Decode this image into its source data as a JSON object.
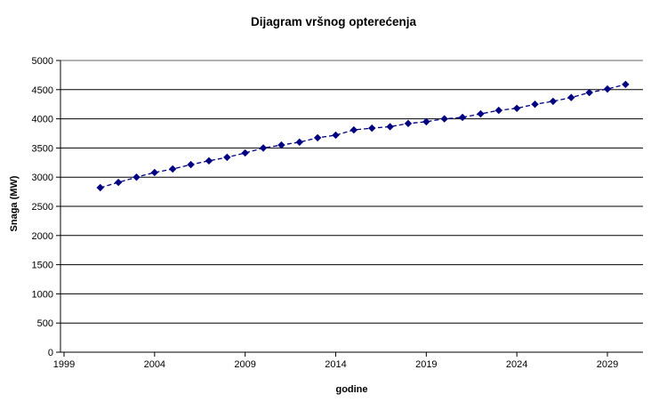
{
  "chart_data": {
    "type": "line",
    "title": "Dijagram vršnog opterećenja",
    "xlabel": "godine",
    "ylabel": "Snaga (MW)",
    "x": [
      2001,
      2002,
      2003,
      2004,
      2005,
      2006,
      2007,
      2008,
      2009,
      2010,
      2011,
      2012,
      2013,
      2014,
      2015,
      2016,
      2017,
      2018,
      2019,
      2020,
      2021,
      2022,
      2023,
      2024,
      2025,
      2026,
      2027,
      2028,
      2029,
      2030
    ],
    "values": [
      2820,
      2910,
      3000,
      3080,
      3140,
      3215,
      3280,
      3340,
      3415,
      3500,
      3550,
      3600,
      3675,
      3720,
      3810,
      3840,
      3865,
      3920,
      3950,
      4000,
      4025,
      4085,
      4145,
      4180,
      4250,
      4300,
      4365,
      4450,
      4510,
      4590
    ],
    "x_tick_labels": [
      "1999",
      "2004",
      "2009",
      "2014",
      "2019",
      "2024",
      "2029"
    ],
    "x_tick_years": [
      1999,
      2004,
      2009,
      2014,
      2019,
      2024,
      2029
    ],
    "y_tick_labels": [
      "0",
      "500",
      "1000",
      "1500",
      "2000",
      "2500",
      "3000",
      "3500",
      "4000",
      "4500",
      "5000"
    ],
    "y_ticks": [
      0,
      500,
      1000,
      1500,
      2000,
      2500,
      3000,
      3500,
      4000,
      4500,
      5000
    ],
    "xlim": [
      1999,
      2031
    ],
    "ylim": [
      0,
      5000
    ],
    "grid": "horizontal-only",
    "legend": "none",
    "line_style": "dashed",
    "marker": "diamond",
    "colors": {
      "series": "#000080",
      "gridline": "#000000",
      "axis": "#000000",
      "plot_top_border": "#999999",
      "text": "#000000",
      "background": "#ffffff"
    }
  }
}
